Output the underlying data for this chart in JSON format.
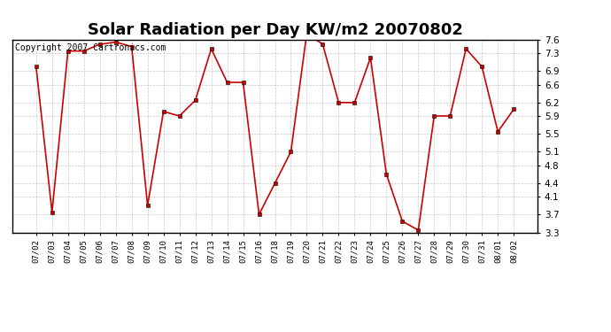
{
  "title": "Solar Radiation per Day KW/m2 20070802",
  "copyright_text": "Copyright 2007 Cartronics.com",
  "dates": [
    "07/02",
    "07/03",
    "07/04",
    "07/05",
    "07/06",
    "07/07",
    "07/08",
    "07/09",
    "07/10",
    "07/11",
    "07/12",
    "07/13",
    "07/14",
    "07/15",
    "07/16",
    "07/18",
    "07/19",
    "07/20",
    "07/21",
    "07/22",
    "07/23",
    "07/24",
    "07/25",
    "07/26",
    "07/27",
    "07/28",
    "07/29",
    "07/30",
    "07/31",
    "08/01",
    "08/02"
  ],
  "values": [
    7.0,
    3.75,
    7.35,
    7.35,
    7.5,
    7.55,
    7.45,
    3.9,
    6.0,
    5.9,
    6.25,
    7.4,
    6.65,
    6.65,
    3.7,
    4.4,
    5.1,
    7.75,
    7.5,
    6.2,
    6.2,
    7.2,
    4.6,
    3.55,
    3.35,
    5.9,
    5.9,
    7.4,
    7.0,
    5.55,
    6.05
  ],
  "line_color": "#cc0000",
  "marker": "s",
  "marker_size": 2.5,
  "bg_color": "#ffffff",
  "plot_bg_color": "#ffffff",
  "grid_color": "#bbbbbb",
  "ylim": [
    3.3,
    7.6
  ],
  "yticks": [
    3.3,
    3.7,
    4.1,
    4.4,
    4.8,
    5.1,
    5.5,
    5.9,
    6.2,
    6.6,
    6.9,
    7.3,
    7.6
  ],
  "title_fontsize": 13,
  "copyright_fontsize": 7
}
